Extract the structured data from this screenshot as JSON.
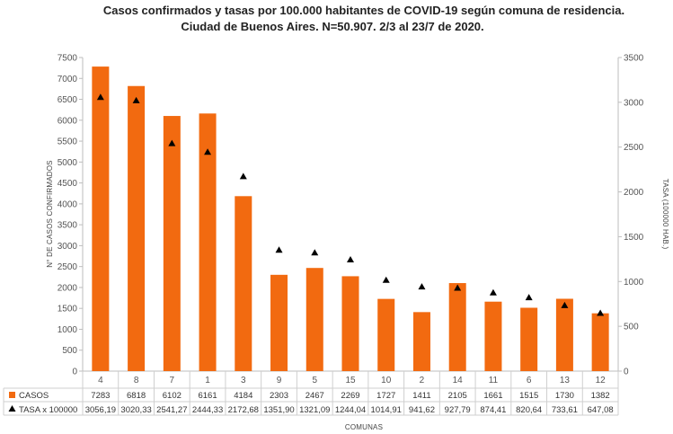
{
  "chart_data": {
    "type": "bar",
    "title": "Casos confirmados y tasas por 100.000 habitantes de COVID-19 según comuna de residencia.",
    "subtitle": "Ciudad de Buenos Aires. N=50.907. 2/3 al 23/7 de 2020.",
    "xlabel": "COMUNAS",
    "ylabel": "N° DE CASOS CONFIRMADOS",
    "y2label": "TASA (100000 HAB.)",
    "categories": [
      "4",
      "8",
      "7",
      "1",
      "3",
      "9",
      "5",
      "15",
      "10",
      "2",
      "14",
      "11",
      "6",
      "13",
      "12"
    ],
    "series": [
      {
        "name": "CASOS",
        "type": "bar",
        "axis": "left",
        "color": "#f26a10",
        "values": [
          7283,
          6818,
          6102,
          6161,
          4184,
          2303,
          2467,
          2269,
          1727,
          1411,
          2105,
          1661,
          1515,
          1730,
          1382
        ],
        "labels": [
          "7283",
          "6818",
          "6102",
          "6161",
          "4184",
          "2303",
          "2467",
          "2269",
          "1727",
          "1411",
          "2105",
          "1661",
          "1515",
          "1730",
          "1382"
        ]
      },
      {
        "name": "TASA x 100000",
        "type": "scatter",
        "marker": "triangle",
        "axis": "right",
        "color": "#000000",
        "values": [
          3056.19,
          3020.33,
          2541.27,
          2444.33,
          2172.68,
          1351.9,
          1321.09,
          1244.04,
          1014.91,
          941.62,
          927.79,
          874.41,
          820.64,
          733.61,
          647.08
        ],
        "labels": [
          "3056,19",
          "3020,33",
          "2541,27",
          "2444,33",
          "2172,68",
          "1351,90",
          "1321,09",
          "1244,04",
          "1014,91",
          "941,62",
          "927,79",
          "874,41",
          "820,64",
          "733,61",
          "647,08"
        ]
      }
    ],
    "ylim": [
      0,
      7500
    ],
    "yticks": [
      0,
      500,
      1000,
      1500,
      2000,
      2500,
      3000,
      3500,
      4000,
      4500,
      5000,
      5500,
      6000,
      6500,
      7000,
      7500
    ],
    "y2lim": [
      0,
      3500
    ],
    "y2ticks": [
      0,
      500,
      1000,
      1500,
      2000,
      2500,
      3000,
      3500
    ],
    "grid": false,
    "legend": "data-table-below"
  }
}
